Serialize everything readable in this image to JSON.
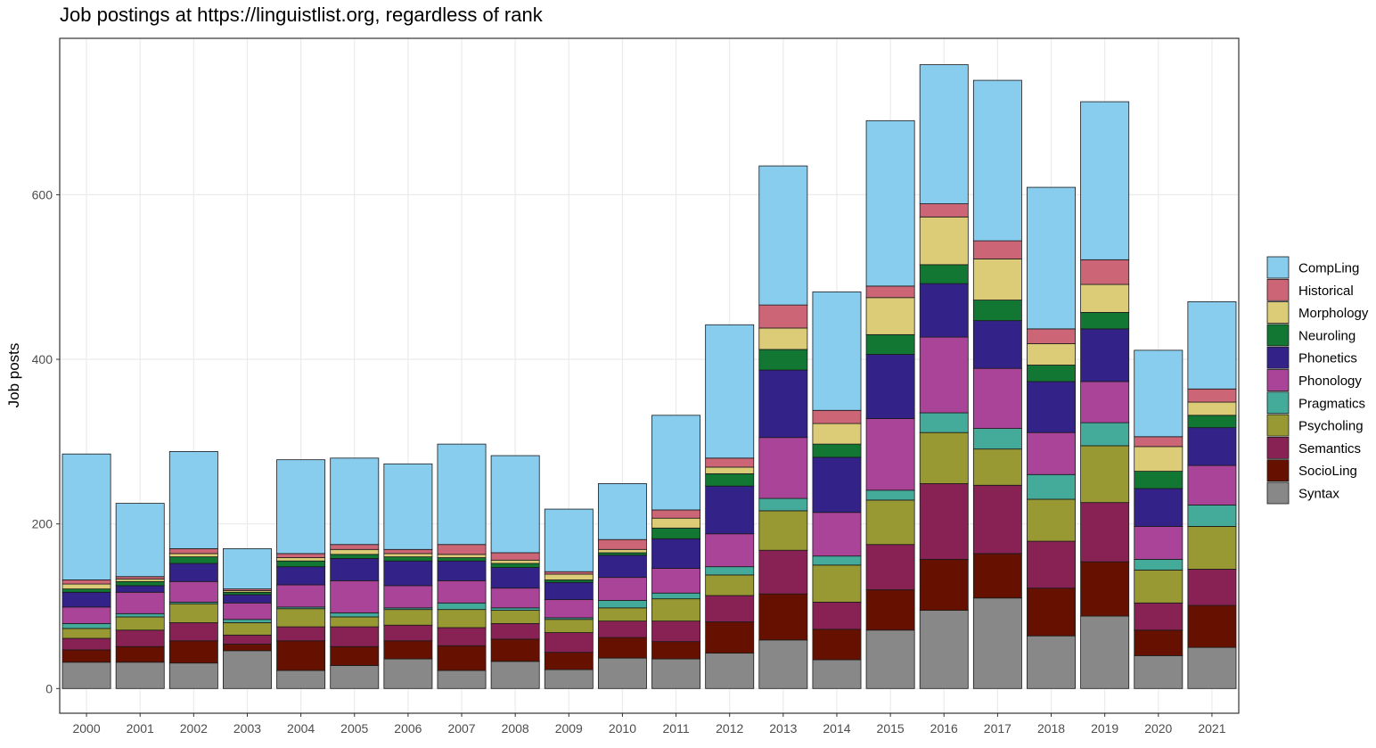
{
  "chart_data": {
    "type": "bar",
    "stacked": true,
    "title": "Job postings at https://linguistlist.org, regardless of rank",
    "xlabel": "",
    "ylabel": "Job posts",
    "ylim": [
      -30,
      790
    ],
    "yticks": [
      0,
      200,
      400,
      600
    ],
    "grid": true,
    "legend_position": "right",
    "categories": [
      "2000",
      "2001",
      "2002",
      "2003",
      "2004",
      "2005",
      "2006",
      "2007",
      "2008",
      "2009",
      "2010",
      "2011",
      "2012",
      "2013",
      "2014",
      "2015",
      "2016",
      "2017",
      "2018",
      "2019",
      "2020",
      "2021"
    ],
    "series": [
      {
        "name": "Syntax",
        "color": "#888888",
        "values": [
          32,
          32,
          31,
          46,
          22,
          28,
          36,
          22,
          33,
          23,
          37,
          36,
          43,
          59,
          35,
          71,
          95,
          110,
          64,
          88,
          40,
          50
        ]
      },
      {
        "name": "SocioLing",
        "color": "#661100",
        "values": [
          15,
          19,
          27,
          8,
          36,
          23,
          22,
          30,
          27,
          21,
          25,
          21,
          38,
          56,
          37,
          49,
          62,
          54,
          58,
          66,
          31,
          51
        ]
      },
      {
        "name": "Semantics",
        "color": "#882255",
        "values": [
          14,
          20,
          22,
          11,
          17,
          24,
          19,
          22,
          19,
          24,
          20,
          25,
          32,
          53,
          33,
          55,
          92,
          83,
          57,
          72,
          33,
          44
        ]
      },
      {
        "name": "Psycholing",
        "color": "#999933",
        "values": [
          12,
          16,
          23,
          15,
          22,
          12,
          19,
          22,
          16,
          16,
          16,
          27,
          25,
          48,
          45,
          54,
          62,
          44,
          51,
          69,
          40,
          52
        ]
      },
      {
        "name": "Pragmatics",
        "color": "#44AA99",
        "values": [
          6,
          4,
          2,
          4,
          2,
          5,
          2,
          8,
          3,
          2,
          9,
          7,
          10,
          15,
          11,
          12,
          24,
          25,
          30,
          28,
          13,
          26
        ]
      },
      {
        "name": "Phonology",
        "color": "#AA4499",
        "values": [
          20,
          26,
          25,
          20,
          27,
          39,
          27,
          27,
          24,
          22,
          28,
          30,
          40,
          74,
          53,
          87,
          92,
          73,
          51,
          50,
          40,
          48
        ]
      },
      {
        "name": "Phonetics",
        "color": "#332288",
        "values": [
          18,
          8,
          22,
          10,
          22,
          27,
          30,
          24,
          25,
          21,
          27,
          36,
          58,
          82,
          67,
          78,
          65,
          58,
          62,
          64,
          46,
          46
        ]
      },
      {
        "name": "Neuroling",
        "color": "#117733",
        "values": [
          4,
          5,
          8,
          3,
          7,
          5,
          5,
          4,
          5,
          3,
          3,
          13,
          15,
          25,
          16,
          24,
          23,
          25,
          20,
          20,
          21,
          15
        ]
      },
      {
        "name": "Morphology",
        "color": "#DDCC77",
        "values": [
          6,
          3,
          4,
          2,
          4,
          6,
          4,
          4,
          4,
          7,
          4,
          12,
          8,
          26,
          25,
          45,
          58,
          50,
          26,
          34,
          30,
          16
        ]
      },
      {
        "name": "Historical",
        "color": "#CC6677",
        "values": [
          5,
          3,
          6,
          2,
          5,
          6,
          5,
          12,
          9,
          3,
          12,
          10,
          11,
          28,
          16,
          14,
          16,
          22,
          18,
          30,
          12,
          16
        ]
      },
      {
        "name": "CompLing",
        "color": "#88CCEE",
        "values": [
          153,
          89,
          118,
          49,
          114,
          105,
          104,
          122,
          118,
          76,
          68,
          115,
          162,
          169,
          144,
          201,
          169,
          195,
          172,
          192,
          105,
          106
        ]
      }
    ]
  }
}
